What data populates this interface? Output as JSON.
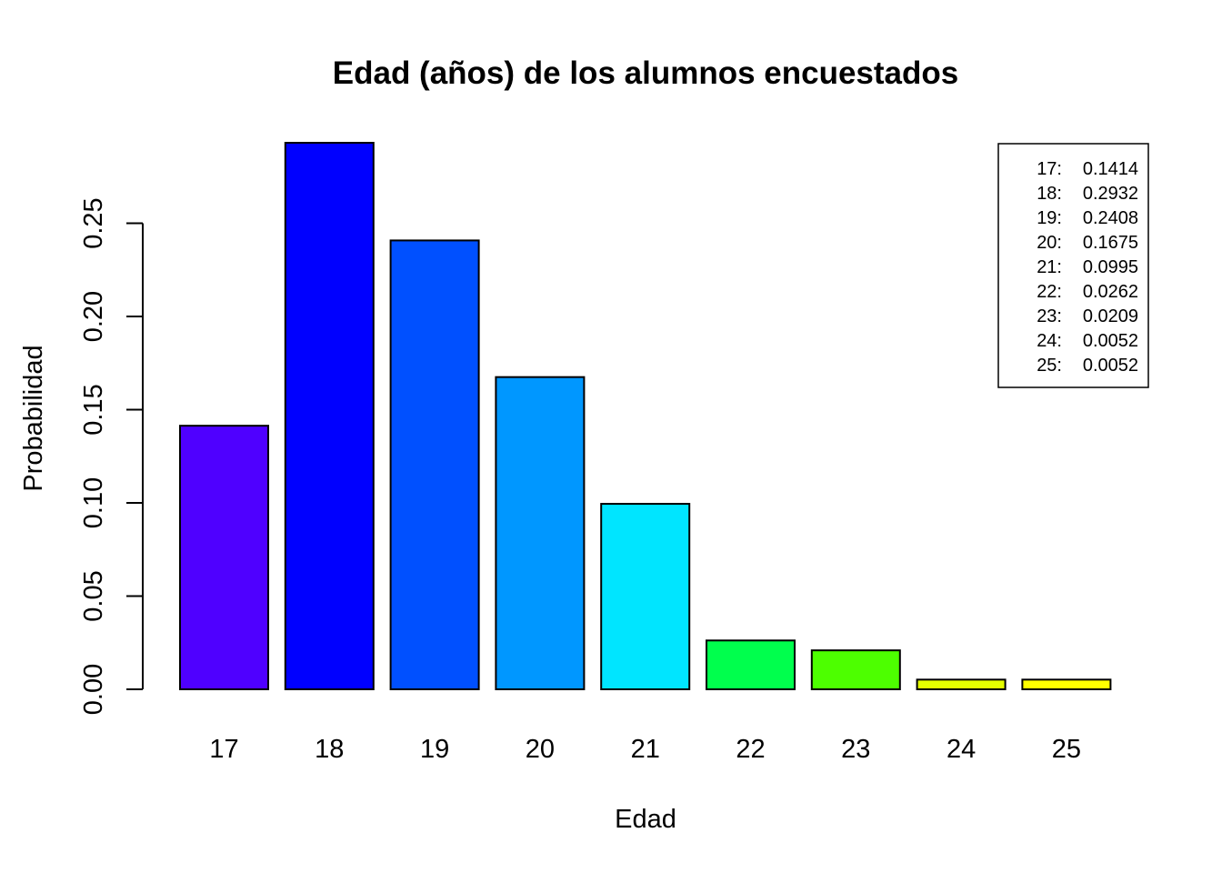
{
  "chart_data": {
    "type": "bar",
    "title": "Edad (años) de los alumnos encuestados",
    "xlabel": "Edad",
    "ylabel": "Probabilidad",
    "categories": [
      "17",
      "18",
      "19",
      "20",
      "21",
      "22",
      "23",
      "24",
      "25"
    ],
    "values": [
      0.1414,
      0.2932,
      0.2408,
      0.1675,
      0.0995,
      0.0262,
      0.0209,
      0.0052,
      0.0052
    ],
    "colors": [
      "#4F00FF",
      "#0000FF",
      "#0050FF",
      "#0097FF",
      "#00E5FF",
      "#00FF4D",
      "#4DFF00",
      "#E5FF00",
      "#FFFF00"
    ],
    "yticks": [
      "0.00",
      "0.05",
      "0.10",
      "0.15",
      "0.20",
      "0.25"
    ],
    "ylim": [
      0,
      0.2932
    ],
    "grid": false,
    "legend": {
      "position": "top-right",
      "entries": [
        {
          "key": "17:",
          "value": "0.1414"
        },
        {
          "key": "18:",
          "value": "0.2932"
        },
        {
          "key": "19:",
          "value": "0.2408"
        },
        {
          "key": "20:",
          "value": "0.1675"
        },
        {
          "key": "21:",
          "value": "0.0995"
        },
        {
          "key": "22:",
          "value": "0.0262"
        },
        {
          "key": "23:",
          "value": "0.0209"
        },
        {
          "key": "24:",
          "value": "0.0052"
        },
        {
          "key": "25:",
          "value": "0.0052"
        }
      ]
    }
  }
}
